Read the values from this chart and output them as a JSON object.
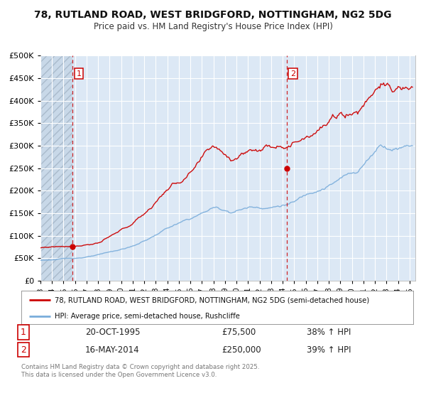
{
  "title_line1": "78, RUTLAND ROAD, WEST BRIDGFORD, NOTTINGHAM, NG2 5DG",
  "title_line2": "Price paid vs. HM Land Registry's House Price Index (HPI)",
  "legend_label_red": "78, RUTLAND ROAD, WEST BRIDGFORD, NOTTINGHAM, NG2 5DG (semi-detached house)",
  "legend_label_blue": "HPI: Average price, semi-detached house, Rushcliffe",
  "footer": "Contains HM Land Registry data © Crown copyright and database right 2025.\nThis data is licensed under the Open Government Licence v3.0.",
  "red_color": "#cc0000",
  "blue_color": "#7aaddb",
  "background_color": "#ffffff",
  "plot_bg_color": "#dce8f5",
  "hatch_bg_color": "#c8d8e8",
  "grid_color": "#ffffff",
  "sale1_date": 1995.8,
  "sale1_price": 75500,
  "sale1_label": "1",
  "sale1_text": "20-OCT-1995",
  "sale1_amount": "£75,500",
  "sale1_hpi": "38% ↑ HPI",
  "sale2_date": 2014.37,
  "sale2_price": 250000,
  "sale2_label": "2",
  "sale2_text": "16-MAY-2014",
  "sale2_amount": "£250,000",
  "sale2_hpi": "39% ↑ HPI",
  "xmin": 1993.0,
  "xmax": 2025.5,
  "ymin": 0,
  "ymax": 500000,
  "yticks": [
    0,
    50000,
    100000,
    150000,
    200000,
    250000,
    300000,
    350000,
    400000,
    450000,
    500000
  ]
}
